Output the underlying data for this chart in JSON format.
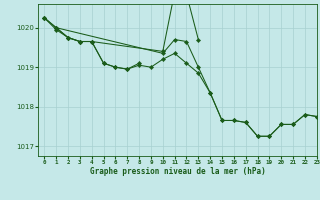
{
  "title": "Graphe pression niveau de la mer (hPa)",
  "bg_color": "#c5e8e8",
  "grid_color": "#a8d0d0",
  "line_color": "#1a5c1a",
  "marker_color": "#1a5c1a",
  "xlim": [
    -0.5,
    23
  ],
  "ylim": [
    1016.75,
    1020.6
  ],
  "yticks": [
    1017,
    1018,
    1019,
    1020
  ],
  "xtick_labels": [
    "0",
    "1",
    "2",
    "3",
    "4",
    "5",
    "6",
    "7",
    "8",
    "9",
    "10",
    "11",
    "12",
    "13",
    "14",
    "15",
    "16",
    "17",
    "18",
    "19",
    "20",
    "21",
    "22",
    "23"
  ],
  "series": [
    {
      "x": [
        0,
        1,
        2,
        3,
        4,
        5,
        6,
        7,
        8,
        9,
        10,
        11,
        12,
        13,
        14,
        15,
        16,
        17,
        18,
        19,
        20,
        21,
        22,
        23
      ],
      "y": [
        1020.25,
        1020.0,
        1019.75,
        1019.65,
        1019.65,
        1019.1,
        1019.0,
        1018.95,
        1019.05,
        1019.0,
        1019.2,
        1019.35,
        1019.1,
        1018.85,
        1018.35,
        1017.65,
        1017.65,
        1017.6,
        1017.25,
        1017.25,
        1017.55,
        1017.55,
        1017.8,
        1017.75
      ]
    },
    {
      "x": [
        0,
        1,
        2,
        3,
        4,
        5,
        6,
        7,
        8
      ],
      "y": [
        1020.25,
        1019.95,
        1019.75,
        1019.65,
        1019.65,
        1019.1,
        1019.0,
        1018.95,
        1019.1
      ]
    },
    {
      "x": [
        0,
        1,
        10,
        11,
        12,
        13,
        14,
        15,
        16,
        17,
        18,
        19,
        20,
        21,
        22,
        23
      ],
      "y": [
        1020.25,
        1020.0,
        1019.35,
        1019.7,
        1019.65,
        1019.0,
        1018.35,
        1017.65,
        1017.65,
        1017.6,
        1017.25,
        1017.25,
        1017.55,
        1017.55,
        1017.8,
        1017.75
      ]
    },
    {
      "x": [
        1,
        2,
        3,
        4,
        10,
        11,
        12,
        13
      ],
      "y": [
        1020.0,
        1019.75,
        1019.65,
        1019.65,
        1019.4,
        1020.9,
        1020.85,
        1019.7
      ]
    }
  ]
}
